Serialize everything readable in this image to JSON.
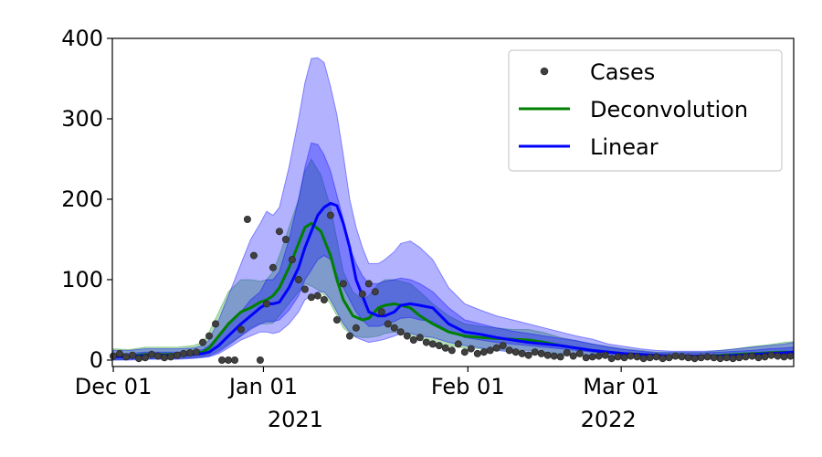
{
  "chart_data": {
    "type": "line",
    "x_unit": "day",
    "x_start": "Dec 01",
    "ylim": [
      -8,
      400
    ],
    "xlim": [
      -0.3,
      213
    ],
    "y_ticks": [
      {
        "value": 0,
        "label": "0"
      },
      {
        "value": 100,
        "label": "100"
      },
      {
        "value": 200,
        "label": "200"
      },
      {
        "value": 300,
        "label": "300"
      },
      {
        "value": 400,
        "label": "400"
      }
    ],
    "x_ticks": [
      {
        "value": 0,
        "label": "Dec 01"
      },
      {
        "value": 47,
        "label": "Jan 01"
      },
      {
        "value": 111,
        "label": "Feb 01"
      },
      {
        "value": 159,
        "label": "Mar 01"
      }
    ],
    "x_year_labels": [
      {
        "value": 57,
        "label": "2021"
      },
      {
        "value": 155,
        "label": "2022"
      }
    ],
    "legend_position": "top-right",
    "colors": {
      "cases": "#404040",
      "deconvolution": "#008000",
      "linear": "#0000ff",
      "deconvolution_band": "#2ca02c",
      "linear_band_outer": "#0000ff",
      "linear_band_inner": "#0000ff"
    },
    "series": [
      {
        "name": "Cases",
        "kind": "scatter",
        "x": [
          0,
          2,
          4,
          6,
          8,
          10,
          12,
          14,
          16,
          18,
          20,
          22,
          24,
          26,
          28,
          30,
          32,
          34,
          36,
          38,
          40,
          42,
          44,
          46,
          48,
          50,
          52,
          54,
          56,
          58,
          60,
          62,
          64,
          66,
          68,
          70,
          72,
          74,
          76,
          78,
          80,
          82,
          84,
          86,
          88,
          90,
          92,
          94,
          96,
          98,
          100,
          102,
          104,
          106,
          108,
          110,
          112,
          114,
          116,
          118,
          120,
          122,
          124,
          126,
          128,
          130,
          132,
          134,
          136,
          138,
          140,
          142,
          144,
          146,
          148,
          150,
          152,
          154,
          156,
          158,
          160,
          162,
          164,
          166,
          168,
          170,
          172,
          174,
          176,
          178,
          180,
          182,
          184,
          186,
          188,
          190,
          192,
          194,
          196,
          198,
          200,
          202,
          204,
          206,
          208,
          210,
          212
        ],
        "y": [
          5,
          8,
          4,
          6,
          2,
          3,
          7,
          5,
          3,
          4,
          6,
          8,
          9,
          10,
          22,
          30,
          45,
          0,
          0,
          0,
          38,
          175,
          130,
          0,
          70,
          115,
          160,
          150,
          125,
          100,
          88,
          78,
          80,
          75,
          180,
          50,
          95,
          30,
          40,
          82,
          95,
          85,
          60,
          45,
          40,
          35,
          30,
          25,
          28,
          22,
          20,
          18,
          15,
          12,
          20,
          10,
          14,
          8,
          10,
          12,
          15,
          18,
          12,
          10,
          8,
          6,
          10,
          8,
          6,
          5,
          4,
          9,
          5,
          8,
          3,
          4,
          5,
          6,
          2,
          4,
          3,
          5,
          4,
          2,
          3,
          4,
          2,
          3,
          5,
          4,
          3,
          2,
          3,
          4,
          3,
          2,
          3,
          2,
          3,
          4,
          5,
          3,
          4,
          6,
          5,
          4,
          5
        ]
      },
      {
        "name": "Deconvolution",
        "kind": "line",
        "x": [
          0,
          5,
          10,
          15,
          20,
          25,
          28,
          30,
          33,
          36,
          40,
          43,
          46,
          48,
          50,
          52,
          55,
          58,
          60,
          62,
          65,
          68,
          70,
          72,
          75,
          78,
          80,
          83,
          85,
          88,
          90,
          93,
          96,
          100,
          105,
          110,
          115,
          120,
          125,
          130,
          135,
          140,
          145,
          150,
          155,
          160,
          165,
          170,
          175,
          180,
          185,
          190,
          195,
          200,
          205,
          210,
          213
        ],
        "y": [
          5,
          5,
          7,
          7,
          7,
          8,
          10,
          15,
          30,
          45,
          60,
          65,
          72,
          75,
          80,
          90,
          115,
          145,
          165,
          170,
          160,
          130,
          100,
          75,
          55,
          50,
          52,
          65,
          68,
          70,
          68,
          65,
          55,
          45,
          35,
          30,
          28,
          27,
          26,
          25,
          22,
          18,
          15,
          12,
          10,
          8,
          7,
          6,
          5,
          5,
          5,
          6,
          7,
          8,
          9,
          10,
          10
        ]
      },
      {
        "name": "Linear",
        "kind": "line",
        "x": [
          0,
          5,
          10,
          15,
          20,
          25,
          28,
          30,
          33,
          36,
          40,
          43,
          46,
          48,
          50,
          52,
          55,
          58,
          60,
          62,
          64,
          66,
          68,
          70,
          72,
          74,
          76,
          78,
          80,
          83,
          85,
          88,
          90,
          93,
          96,
          100,
          105,
          110,
          115,
          120,
          125,
          130,
          135,
          140,
          145,
          150,
          155,
          160,
          165,
          170,
          175,
          180,
          185,
          190,
          195,
          200,
          205,
          210,
          213
        ],
        "y": [
          4,
          4,
          6,
          6,
          6,
          7,
          8,
          10,
          18,
          30,
          45,
          55,
          65,
          70,
          70,
          72,
          90,
          115,
          140,
          160,
          180,
          190,
          195,
          192,
          170,
          140,
          100,
          80,
          60,
          55,
          55,
          60,
          68,
          70,
          68,
          65,
          45,
          35,
          32,
          28,
          25,
          22,
          20,
          18,
          15,
          12,
          10,
          8,
          7,
          6,
          5,
          5,
          5,
          5,
          6,
          7,
          8,
          9,
          10
        ]
      },
      {
        "name": "deconvolution-band",
        "kind": "band",
        "x": [
          0,
          5,
          10,
          15,
          20,
          25,
          28,
          30,
          33,
          36,
          40,
          43,
          46,
          48,
          50,
          52,
          55,
          58,
          60,
          62,
          65,
          68,
          70,
          72,
          75,
          78,
          80,
          83,
          85,
          88,
          90,
          93,
          96,
          100,
          105,
          110,
          115,
          120,
          125,
          130,
          135,
          140,
          145,
          150,
          155,
          160,
          165,
          170,
          175,
          180,
          185,
          190,
          195,
          200,
          205,
          210,
          213
        ],
        "lower": [
          0,
          1,
          2,
          2,
          2,
          3,
          4,
          6,
          12,
          20,
          30,
          40,
          45,
          45,
          46,
          55,
          70,
          85,
          95,
          92,
          85,
          70,
          55,
          40,
          30,
          28,
          28,
          30,
          33,
          35,
          33,
          30,
          25,
          20,
          18,
          15,
          14,
          13,
          12,
          12,
          10,
          8,
          6,
          5,
          4,
          3,
          3,
          2,
          2,
          2,
          2,
          2,
          2,
          3,
          3,
          4,
          4
        ],
        "upper": [
          14,
          13,
          16,
          16,
          16,
          18,
          22,
          35,
          60,
          85,
          100,
          100,
          98,
          100,
          110,
          130,
          165,
          200,
          235,
          250,
          230,
          190,
          150,
          110,
          85,
          75,
          80,
          95,
          100,
          100,
          98,
          95,
          85,
          70,
          55,
          45,
          42,
          40,
          38,
          38,
          34,
          28,
          24,
          20,
          17,
          14,
          12,
          10,
          10,
          10,
          10,
          12,
          14,
          17,
          19,
          22,
          23
        ]
      },
      {
        "name": "linear-band-outer",
        "kind": "band",
        "x": [
          0,
          5,
          10,
          15,
          20,
          25,
          28,
          30,
          33,
          36,
          40,
          43,
          46,
          48,
          50,
          52,
          55,
          58,
          60,
          62,
          64,
          66,
          68,
          70,
          72,
          74,
          76,
          78,
          80,
          83,
          85,
          88,
          90,
          93,
          96,
          100,
          105,
          110,
          115,
          120,
          125,
          130,
          135,
          140,
          145,
          150,
          155,
          160,
          165,
          170,
          175,
          180,
          185,
          190,
          195,
          200,
          205,
          210,
          213
        ],
        "lower": [
          0,
          0,
          1,
          1,
          1,
          2,
          3,
          4,
          8,
          15,
          25,
          30,
          35,
          35,
          33,
          35,
          45,
          60,
          75,
          80,
          85,
          85,
          75,
          60,
          45,
          35,
          28,
          25,
          22,
          24,
          26,
          30,
          33,
          33,
          30,
          28,
          22,
          18,
          15,
          12,
          10,
          9,
          8,
          7,
          6,
          5,
          4,
          4,
          3,
          3,
          3,
          3,
          3,
          3,
          3,
          4,
          4,
          5,
          5
        ],
        "upper": [
          12,
          12,
          14,
          14,
          14,
          15,
          18,
          25,
          50,
          80,
          120,
          150,
          170,
          185,
          180,
          190,
          240,
          300,
          345,
          375,
          376,
          370,
          340,
          305,
          255,
          200,
          165,
          140,
          120,
          120,
          125,
          135,
          145,
          148,
          140,
          125,
          90,
          70,
          62,
          55,
          50,
          45,
          40,
          35,
          30,
          26,
          20,
          17,
          14,
          12,
          11,
          11,
          11,
          12,
          14,
          16,
          18,
          20,
          22
        ]
      },
      {
        "name": "linear-band-inner",
        "kind": "band",
        "x": [
          0,
          5,
          10,
          15,
          20,
          25,
          28,
          30,
          33,
          36,
          40,
          43,
          46,
          48,
          50,
          52,
          55,
          58,
          60,
          62,
          64,
          66,
          68,
          70,
          72,
          74,
          76,
          78,
          80,
          83,
          85,
          88,
          90,
          93,
          96,
          100,
          105,
          110,
          115,
          120,
          125,
          130,
          135,
          140,
          145,
          150,
          155,
          160,
          165,
          170,
          175,
          180,
          185,
          190,
          195,
          200,
          205,
          210,
          213
        ],
        "lower": [
          1,
          1,
          2,
          2,
          2,
          3,
          4,
          5,
          10,
          18,
          30,
          38,
          45,
          48,
          48,
          50,
          62,
          80,
          100,
          112,
          125,
          130,
          125,
          105,
          90,
          75,
          60,
          50,
          42,
          42,
          44,
          48,
          52,
          53,
          50,
          48,
          36,
          28,
          25,
          22,
          20,
          18,
          16,
          14,
          12,
          10,
          8,
          6,
          5,
          4,
          4,
          4,
          4,
          4,
          4,
          5,
          6,
          7,
          7
        ],
        "upper": [
          8,
          8,
          10,
          10,
          10,
          11,
          13,
          18,
          30,
          45,
          60,
          75,
          85,
          100,
          100,
          110,
          150,
          200,
          240,
          270,
          268,
          255,
          235,
          205,
          175,
          140,
          120,
          105,
          95,
          95,
          98,
          100,
          102,
          100,
          95,
          85,
          65,
          50,
          45,
          40,
          36,
          33,
          30,
          27,
          24,
          20,
          16,
          13,
          11,
          9,
          9,
          9,
          9,
          10,
          11,
          12,
          14,
          15,
          16
        ]
      }
    ]
  }
}
